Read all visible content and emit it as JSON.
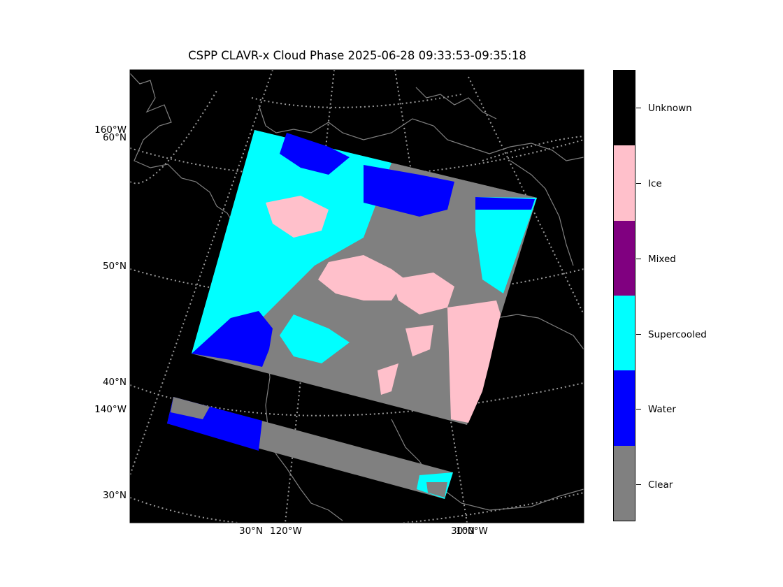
{
  "title": "CSPP CLAVR-x Cloud Phase 2025-06-28 09:33:53-09:35:18",
  "latitude_labels": [
    "160°W",
    "60°N",
    "50°N",
    "40°N",
    "140°W",
    "30°N"
  ],
  "longitude_labels": [
    "30°N",
    "120°W",
    "30°N",
    "100°W"
  ],
  "colorbar": {
    "categories": [
      {
        "label": "Unknown",
        "color": "#000000"
      },
      {
        "label": "Ice",
        "color": "#ffc0cb"
      },
      {
        "label": "Mixed",
        "color": "#800080"
      },
      {
        "label": "Supercooled",
        "color": "#00ffff"
      },
      {
        "label": "Water",
        "color": "#0000ff"
      },
      {
        "label": "Clear",
        "color": "#808080"
      }
    ]
  },
  "map_colors": {
    "background": "#000000",
    "coastline": "#808080",
    "gridline": "#9a9a9a"
  }
}
